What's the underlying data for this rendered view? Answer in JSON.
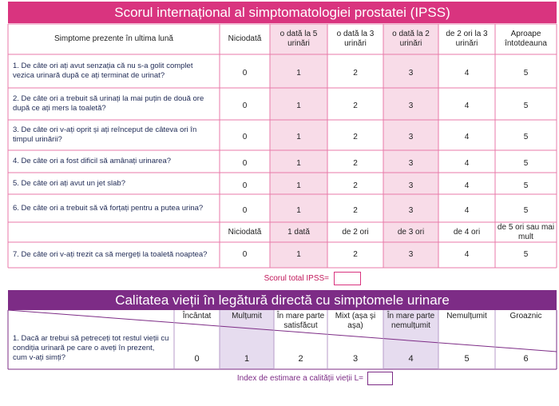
{
  "ipss": {
    "title": "Scorul internațional al simptomatologiei prostatei (IPSS)",
    "header": [
      "Simptome prezente în ultima lună",
      "Niciodată",
      "o dată la 5 urinări",
      "o dată la 3 urinări",
      "o dată la 2 urinări",
      "de 2 ori la 3 urinări",
      "Aproape întotdeauna"
    ],
    "rows": [
      {
        "question": "1. De câte ori ați avut senzația că nu s-a golit complet vezica urinară după ce ați terminat de urinat?",
        "scores": [
          0,
          1,
          2,
          3,
          4,
          5
        ]
      },
      {
        "question": "2. De câte ori a trebuit să urinați la mai puțin de două ore după ce ați mers la toaletă?",
        "scores": [
          0,
          1,
          2,
          3,
          4,
          5
        ]
      },
      {
        "question": "3. De câte ori v-ați oprit și ați reînceput de câteva ori în timpul urinării?",
        "scores": [
          0,
          1,
          2,
          3,
          4,
          5
        ]
      },
      {
        "question": "4. De câte ori a fost dificil să amânați urinarea?",
        "scores": [
          0,
          1,
          2,
          3,
          4,
          5
        ]
      },
      {
        "question": "5. De câte ori ați avut un jet slab?",
        "scores": [
          0,
          1,
          2,
          3,
          4,
          5
        ]
      },
      {
        "question": "6. De câte ori a trebuit să vă forțați pentru a putea urina?",
        "scores": [
          0,
          1,
          2,
          3,
          4,
          5
        ]
      }
    ],
    "frequency_header": [
      "Niciodată",
      "1 dată",
      "de 2 ori",
      "de 3 ori",
      "de 4 ori",
      "de 5 ori sau mai mult"
    ],
    "night_row": {
      "question": "7. De câte ori v-ați trezit ca să mergeți la toaletă noaptea?",
      "scores": [
        0,
        1,
        2,
        3,
        4,
        5
      ]
    },
    "total_label": "Scorul total IPSS="
  },
  "quality_of_life": {
    "title": "Calitatea vieții în legătură directă cu simptomele urinare",
    "header": [
      "Încântat",
      "Mulțumit",
      "În mare parte satisfăcut",
      "Mixt (așa și așa)",
      "În mare parte nemulțumit",
      "Nemulțumit",
      "Groaznic"
    ],
    "question": "1. Dacă ar trebui să petreceți tot restul vieții cu condiția urinară pe care o aveți în prezent, cum v-ați simți?",
    "scores": [
      0,
      1,
      2,
      3,
      4,
      5,
      6
    ],
    "index_label": "Index de estimare a calității vieții L="
  }
}
